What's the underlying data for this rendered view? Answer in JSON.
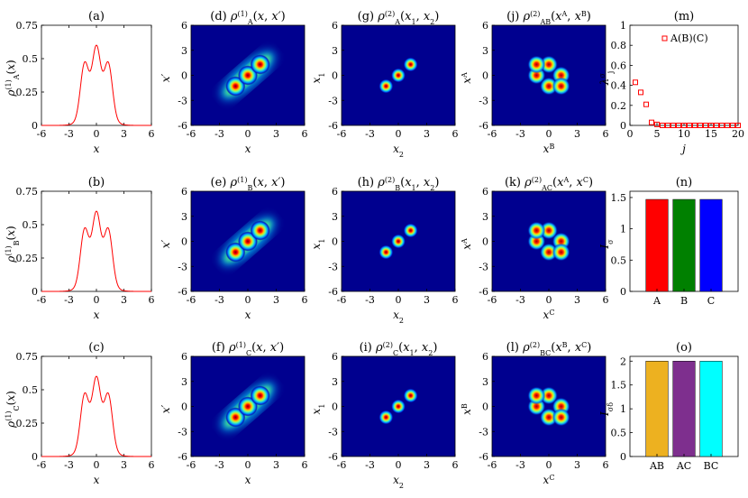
{
  "chart_data": [
    {
      "panel": "a",
      "type": "line",
      "title": "(a)",
      "xlabel": "x",
      "ylabel": "ρ(1)A(x)",
      "xlim": [
        -6,
        6
      ],
      "ylim": [
        0,
        0.75
      ],
      "xticks": [
        "-6",
        "-3",
        "0",
        "3",
        "6"
      ],
      "yticks": [
        "0",
        "0.25",
        "0.5",
        "0.75"
      ],
      "color": "#ff0000",
      "peaks": [
        {
          "x": -1.3,
          "y": 0.53
        },
        {
          "x": 0,
          "y": 0.6
        },
        {
          "x": 1.3,
          "y": 0.53
        }
      ],
      "dips": [
        {
          "x": -0.65,
          "y": 0.43
        },
        {
          "x": 0.65,
          "y": 0.43
        }
      ]
    },
    {
      "panel": "b",
      "type": "line",
      "title": "(b)",
      "xlabel": "x",
      "ylabel": "ρ(1)B(x)",
      "xlim": [
        -6,
        6
      ],
      "ylim": [
        0,
        0.75
      ],
      "xticks": [
        "-6",
        "-3",
        "0",
        "3",
        "6"
      ],
      "yticks": [
        "0",
        "0.25",
        "0.5",
        "0.75"
      ],
      "color": "#ff0000",
      "peaks": [
        {
          "x": -1.3,
          "y": 0.53
        },
        {
          "x": 0,
          "y": 0.6
        },
        {
          "x": 1.3,
          "y": 0.53
        }
      ],
      "dips": [
        {
          "x": -0.65,
          "y": 0.43
        },
        {
          "x": 0.65,
          "y": 0.43
        }
      ]
    },
    {
      "panel": "c",
      "type": "line",
      "title": "(c)",
      "xlabel": "x",
      "ylabel": "ρ(1)C(x)",
      "xlim": [
        -6,
        6
      ],
      "ylim": [
        0,
        0.75
      ],
      "xticks": [
        "-6",
        "-3",
        "0",
        "3",
        "6"
      ],
      "yticks": [
        "0",
        "0.25",
        "0.5",
        "0.75"
      ],
      "color": "#ff0000",
      "peaks": [
        {
          "x": -1.3,
          "y": 0.53
        },
        {
          "x": 0,
          "y": 0.6
        },
        {
          "x": 1.3,
          "y": 0.53
        }
      ],
      "dips": [
        {
          "x": -0.65,
          "y": 0.43
        },
        {
          "x": 0.65,
          "y": 0.43
        }
      ]
    },
    {
      "panel": "d",
      "type": "heatmap",
      "title": "(d) ρ(1)A(x, x′)",
      "xlabel": "x",
      "ylabel": "x′",
      "xlim": [
        -6,
        6
      ],
      "ylim": [
        -6,
        6
      ],
      "xticks": [
        "-6",
        "-3",
        "0",
        "3",
        "6"
      ],
      "yticks": [
        "-6",
        "-3",
        "0",
        "3",
        "6"
      ],
      "blobs": [
        [
          -1.3,
          -1.3
        ],
        [
          0,
          0
        ],
        [
          1.3,
          1.3
        ]
      ],
      "ridge": true
    },
    {
      "panel": "e",
      "type": "heatmap",
      "title": "(e) ρ(1)B(x, x′)",
      "xlabel": "x",
      "ylabel": "x′",
      "xlim": [
        -6,
        6
      ],
      "ylim": [
        -6,
        6
      ],
      "xticks": [
        "-6",
        "-3",
        "0",
        "3",
        "6"
      ],
      "yticks": [
        "-6",
        "-3",
        "0",
        "3",
        "6"
      ],
      "blobs": [
        [
          -1.3,
          -1.3
        ],
        [
          0,
          0
        ],
        [
          1.3,
          1.3
        ]
      ],
      "ridge": true
    },
    {
      "panel": "f",
      "type": "heatmap",
      "title": "(f) ρ(1)C(x, x′)",
      "xlabel": "x",
      "ylabel": "x′",
      "xlim": [
        -6,
        6
      ],
      "ylim": [
        -6,
        6
      ],
      "xticks": [
        "-6",
        "-3",
        "0",
        "3",
        "6"
      ],
      "yticks": [
        "-6",
        "-3",
        "0",
        "3",
        "6"
      ],
      "blobs": [
        [
          -1.3,
          -1.3
        ],
        [
          0,
          0
        ],
        [
          1.3,
          1.3
        ]
      ],
      "ridge": true
    },
    {
      "panel": "g",
      "type": "heatmap",
      "title": "(g) ρ(2)A(x1, x2)",
      "xlabel": "x2",
      "ylabel": "x1",
      "xlim": [
        -6,
        6
      ],
      "ylim": [
        -6,
        6
      ],
      "xticks": [
        "-6",
        "-3",
        "0",
        "3",
        "6"
      ],
      "yticks": [
        "-6",
        "-3",
        "0",
        "3",
        "6"
      ],
      "blobs": [
        [
          -1.3,
          -1.3
        ],
        [
          0,
          0
        ],
        [
          1.3,
          1.3
        ]
      ],
      "ridge": false
    },
    {
      "panel": "h",
      "type": "heatmap",
      "title": "(h) ρ(2)B(x1, x2)",
      "xlabel": "x2",
      "ylabel": "x1",
      "xlim": [
        -6,
        6
      ],
      "ylim": [
        -6,
        6
      ],
      "xticks": [
        "-6",
        "-3",
        "0",
        "3",
        "6"
      ],
      "yticks": [
        "-6",
        "-3",
        "0",
        "3",
        "6"
      ],
      "blobs": [
        [
          -1.3,
          -1.3
        ],
        [
          0,
          0
        ],
        [
          1.3,
          1.3
        ]
      ],
      "ridge": false
    },
    {
      "panel": "i",
      "type": "heatmap",
      "title": "(i) ρ(2)C(x1, x2)",
      "xlabel": "x2",
      "ylabel": "x1",
      "xlim": [
        -6,
        6
      ],
      "ylim": [
        -6,
        6
      ],
      "xticks": [
        "-6",
        "-3",
        "0",
        "3",
        "6"
      ],
      "yticks": [
        "-6",
        "-3",
        "0",
        "3",
        "6"
      ],
      "blobs": [
        [
          -1.3,
          -1.3
        ],
        [
          0,
          0
        ],
        [
          1.3,
          1.3
        ]
      ],
      "ridge": false
    },
    {
      "panel": "j",
      "type": "heatmap",
      "title": "(j) ρ(2)AB(xA, xB)",
      "xlabel": "xB",
      "ylabel": "xA",
      "xlim": [
        -6,
        6
      ],
      "ylim": [
        -6,
        6
      ],
      "xticks": [
        "-6",
        "-3",
        "0",
        "3",
        "6"
      ],
      "yticks": [
        "-6",
        "-3",
        "0",
        "3",
        "6"
      ],
      "blobs": [
        [
          -1.3,
          0
        ],
        [
          0,
          -1.3
        ],
        [
          0,
          1.3
        ],
        [
          1.3,
          0
        ],
        [
          -1.3,
          1.3
        ],
        [
          1.3,
          -1.3
        ]
      ],
      "ridge": false
    },
    {
      "panel": "k",
      "type": "heatmap",
      "title": "(k) ρ(2)AC(xA, xC)",
      "xlabel": "xC",
      "ylabel": "xA",
      "xlim": [
        -6,
        6
      ],
      "ylim": [
        -6,
        6
      ],
      "xticks": [
        "-6",
        "-3",
        "0",
        "3",
        "6"
      ],
      "yticks": [
        "-6",
        "-3",
        "0",
        "3",
        "6"
      ],
      "blobs": [
        [
          -1.3,
          0
        ],
        [
          0,
          -1.3
        ],
        [
          0,
          1.3
        ],
        [
          1.3,
          0
        ],
        [
          -1.3,
          1.3
        ],
        [
          1.3,
          -1.3
        ]
      ],
      "ridge": false
    },
    {
      "panel": "l",
      "type": "heatmap",
      "title": "(l) ρ(2)BC(xB, xC)",
      "xlabel": "xC",
      "ylabel": "xB",
      "xlim": [
        -6,
        6
      ],
      "ylim": [
        -6,
        6
      ],
      "xticks": [
        "-6",
        "-3",
        "0",
        "3",
        "6"
      ],
      "yticks": [
        "-6",
        "-3",
        "0",
        "3",
        "6"
      ],
      "blobs": [
        [
          -1.3,
          0
        ],
        [
          0,
          -1.3
        ],
        [
          0,
          1.3
        ],
        [
          1.3,
          0
        ],
        [
          -1.3,
          1.3
        ],
        [
          1.3,
          -1.3
        ]
      ],
      "ridge": false
    },
    {
      "panel": "m",
      "type": "scatter",
      "title": "(m)",
      "xlabel": "j",
      "ylabel": "λσj",
      "xlim": [
        0,
        20
      ],
      "ylim": [
        0,
        1
      ],
      "xticks": [
        "0",
        "5",
        "10",
        "15",
        "20"
      ],
      "yticks": [
        "0",
        "0.2",
        "0.4",
        "0.6",
        "0.8",
        "1"
      ],
      "legend": "A(B)(C)",
      "legend_position": "top-right",
      "color": "#ff0000",
      "x": [
        1,
        2,
        3,
        4,
        5,
        6,
        7,
        8,
        9,
        10,
        11,
        12,
        13,
        14,
        15,
        16,
        17,
        18,
        19,
        20
      ],
      "y": [
        0.43,
        0.33,
        0.21,
        0.03,
        0.01,
        0.0,
        0.0,
        0.0,
        0.0,
        0.0,
        0.0,
        0.0,
        0.0,
        0.0,
        0.0,
        0.0,
        0.0,
        0.0,
        0.0,
        0.0
      ]
    },
    {
      "panel": "n",
      "type": "bar",
      "title": "(n)",
      "ylabel": "Iσ",
      "ylim": [
        0,
        1.6
      ],
      "yticks": [
        "0",
        "0.5",
        "1",
        "1.5"
      ],
      "categories": [
        "A",
        "B",
        "C"
      ],
      "values": [
        1.47,
        1.47,
        1.47
      ],
      "colors": [
        "#ff0000",
        "#008000",
        "#0000ff"
      ]
    },
    {
      "panel": "o",
      "type": "bar",
      "title": "(o)",
      "ylabel": "Iσδ",
      "ylim": [
        0,
        2.1
      ],
      "yticks": [
        "0",
        "0.5",
        "1",
        "1.5",
        "2"
      ],
      "categories": [
        "AB",
        "AC",
        "BC"
      ],
      "values": [
        2.0,
        2.0,
        2.0
      ],
      "colors": [
        "#edb120",
        "#7e2f8e",
        "#00ffff"
      ]
    }
  ]
}
